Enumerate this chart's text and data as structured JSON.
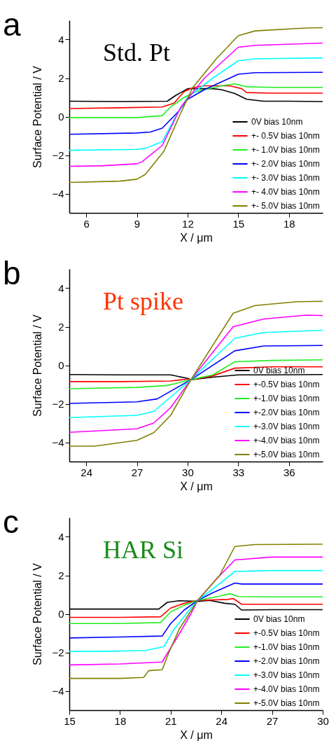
{
  "chart_data": [
    {
      "type": "line",
      "title": "Std. Pt",
      "annotations": [
        "a"
      ],
      "xlabel": "X / μm",
      "ylabel": "Surface Potential / V",
      "xlim": [
        5,
        20
      ],
      "xticks": [
        6,
        9,
        12,
        15,
        18
      ],
      "ylim": [
        -5,
        5
      ],
      "yticks": [
        -4,
        -2,
        0,
        2,
        4
      ],
      "grid": false,
      "legend": "bottom right",
      "marker": "none",
      "line_style": "solid",
      "series": [
        {
          "name": "0V bias 10nm",
          "color": "#000000",
          "x": [
            5,
            8,
            10.8,
            11.3,
            12,
            13.5,
            14,
            14.8,
            15.5,
            16.5,
            18,
            20
          ],
          "values": [
            0.8,
            0.78,
            0.8,
            1.1,
            1.45,
            1.45,
            1.4,
            1.2,
            0.9,
            0.8,
            0.8,
            0.78
          ]
        },
        {
          "name": "+- 0.5V bias 10nm",
          "color": "#ff0000",
          "x": [
            5,
            8,
            10.5,
            11.2,
            11.8,
            12.3,
            13,
            14.5,
            15.2,
            15.5,
            17,
            20
          ],
          "values": [
            0.42,
            0.46,
            0.5,
            0.7,
            1.3,
            1.5,
            1.6,
            1.6,
            1.45,
            1.25,
            1.22,
            1.22
          ]
        },
        {
          "name": "+- 1.0V bias 10nm",
          "color": "#22ee22",
          "x": [
            5,
            9,
            10.5,
            11,
            11.8,
            12.5,
            14,
            14.8,
            15.5,
            17,
            20
          ],
          "values": [
            -0.05,
            -0.05,
            0.05,
            0.5,
            1.0,
            1.3,
            1.6,
            1.7,
            1.55,
            1.52,
            1.52
          ]
        },
        {
          "name": "+- 2.0V bias 10nm",
          "color": "#0000ff",
          "x": [
            5,
            9,
            9.8,
            10.5,
            11.5,
            12,
            13,
            14,
            15,
            16,
            20
          ],
          "values": [
            -0.92,
            -0.85,
            -0.8,
            -0.6,
            0.3,
            0.9,
            1.4,
            1.8,
            2.2,
            2.28,
            2.3
          ]
        },
        {
          "name": "+- 3.0V bias 10nm",
          "color": "#00ffff",
          "x": [
            5,
            9,
            9.5,
            10.5,
            11.3,
            12,
            13.5,
            15,
            16,
            20
          ],
          "values": [
            -1.75,
            -1.7,
            -1.65,
            -1.3,
            0,
            1.0,
            2.0,
            2.9,
            3.0,
            3.05
          ]
        },
        {
          "name": "+- 4.0V bias 10nm",
          "color": "#ff00ff",
          "x": [
            5,
            7,
            9,
            9.3,
            10.5,
            11.6,
            13,
            15,
            16,
            20
          ],
          "values": [
            -2.58,
            -2.55,
            -2.45,
            -2.35,
            -1.5,
            0.5,
            2.0,
            3.6,
            3.7,
            3.82
          ]
        },
        {
          "name": "+- 5.0V bias 10nm",
          "color": "#808000",
          "x": [
            5,
            8,
            9,
            9.5,
            10.6,
            11.5,
            12.3,
            13.7,
            15,
            16,
            19,
            20
          ],
          "values": [
            -3.42,
            -3.35,
            -3.25,
            -3.0,
            -1.8,
            0,
            1.5,
            3.0,
            4.2,
            4.45,
            4.6,
            4.62
          ]
        }
      ]
    },
    {
      "type": "line",
      "title": "Pt spike",
      "annotations": [
        "b"
      ],
      "xlabel": "X / μm",
      "ylabel": "Surface Potential / V",
      "xlim": [
        23,
        38
      ],
      "xticks": [
        24,
        27,
        30,
        33,
        36
      ],
      "ylim": [
        -5,
        5
      ],
      "yticks": [
        -4,
        -2,
        0,
        2,
        4
      ],
      "grid": false,
      "legend": "bottom right",
      "marker": "none",
      "line_style": "solid",
      "series": [
        {
          "name": "0V bias 10nm",
          "color": "#000000",
          "x": [
            23,
            26,
            29,
            30,
            30.2,
            31.5,
            33,
            35,
            38
          ],
          "values": [
            -0.48,
            -0.5,
            -0.5,
            -0.68,
            -0.75,
            -0.62,
            -0.5,
            -0.5,
            -0.48
          ]
        },
        {
          "name": "+-0.5V bias 10nm",
          "color": "#ff0000",
          "x": [
            23,
            26,
            29,
            30,
            30.2,
            31.5,
            32.8,
            35,
            38
          ],
          "values": [
            -0.85,
            -0.85,
            -0.82,
            -0.72,
            -0.75,
            -0.55,
            -0.15,
            -0.08,
            -0.08
          ]
        },
        {
          "name": "+-1.0V bias 10nm",
          "color": "#22ee22",
          "x": [
            23,
            27,
            28.8,
            30.2,
            31.5,
            32.8,
            35,
            38
          ],
          "values": [
            -1.22,
            -1.15,
            -1.05,
            -0.75,
            -0.5,
            0.18,
            0.25,
            0.28
          ]
        },
        {
          "name": "+-2.0V bias 10nm",
          "color": "#0000ff",
          "x": [
            23,
            27,
            28.2,
            30.2,
            32.8,
            34.5,
            38
          ],
          "values": [
            -1.98,
            -1.9,
            -1.75,
            -0.75,
            0.75,
            1.0,
            1.03
          ]
        },
        {
          "name": "+-3.0V bias 10nm",
          "color": "#00ffff",
          "x": [
            23,
            27,
            28,
            30.2,
            32.8,
            34.5,
            38
          ],
          "values": [
            -2.72,
            -2.6,
            -2.4,
            -0.75,
            1.4,
            1.7,
            1.82
          ]
        },
        {
          "name": "+-4.0V bias 10nm",
          "color": "#ff00ff",
          "x": [
            23,
            27,
            28,
            29,
            30.2,
            32.7,
            34.5,
            37,
            38
          ],
          "values": [
            -3.48,
            -3.3,
            -3.0,
            -2.2,
            -0.75,
            2.0,
            2.4,
            2.6,
            2.58
          ]
        },
        {
          "name": "+-5.0V bias 10nm",
          "color": "#808000",
          "x": [
            23,
            24.5,
            27,
            28,
            29,
            30.2,
            32.7,
            34,
            36.5,
            38
          ],
          "values": [
            -4.2,
            -4.2,
            -3.9,
            -3.5,
            -2.6,
            -0.75,
            2.7,
            3.1,
            3.3,
            3.32
          ]
        }
      ]
    },
    {
      "type": "line",
      "title": "HAR Si",
      "annotations": [
        "c"
      ],
      "xlabel": "X / μm",
      "ylabel": "Surface Potential / V",
      "xlim": [
        15,
        30
      ],
      "xticks": [
        15,
        18,
        21,
        24,
        27,
        30
      ],
      "ylim": [
        -5,
        5
      ],
      "yticks": [
        -4,
        -2,
        0,
        2,
        4
      ],
      "grid": false,
      "legend": "bottom right",
      "marker": "none",
      "line_style": "solid",
      "series": [
        {
          "name": "0V bias 10nm",
          "color": "#000000",
          "x": [
            15,
            18,
            20.3,
            20.8,
            21.5,
            22.6,
            23.3,
            24.2,
            24.8,
            25.2,
            27,
            30
          ],
          "values": [
            0.25,
            0.25,
            0.25,
            0.6,
            0.68,
            0.65,
            0.7,
            0.55,
            0.5,
            0.2,
            0.22,
            0.22
          ]
        },
        {
          "name": "+-0.5V bias 10nm",
          "color": "#ff0000",
          "x": [
            15,
            18,
            20.4,
            21,
            21.8,
            22.6,
            24.4,
            24.7,
            25.2,
            27,
            30
          ],
          "values": [
            -0.18,
            -0.18,
            -0.15,
            0.3,
            0.55,
            0.7,
            0.75,
            0.8,
            0.5,
            0.5,
            0.5
          ]
        },
        {
          "name": "+-1.0V bias 10nm",
          "color": "#22ee22",
          "x": [
            15,
            18,
            20.4,
            21,
            21.8,
            22.6,
            23.8,
            24.5,
            25,
            27,
            30
          ],
          "values": [
            -0.5,
            -0.5,
            -0.45,
            0.1,
            0.45,
            0.7,
            0.9,
            1.05,
            0.9,
            0.88,
            0.88
          ]
        },
        {
          "name": "+-2.0V bias 10nm",
          "color": "#0000ff",
          "x": [
            15,
            18,
            20.5,
            21,
            21.8,
            22.6,
            23.5,
            24.8,
            25.2,
            27,
            30
          ],
          "values": [
            -1.25,
            -1.2,
            -1.15,
            -0.5,
            0.2,
            0.7,
            1.1,
            1.6,
            1.55,
            1.55,
            1.55
          ]
        },
        {
          "name": "+-3.0V bias 10nm",
          "color": "#00ffff",
          "x": [
            15,
            17,
            19.5,
            20.6,
            21.2,
            22.1,
            22.6,
            23.8,
            24.8,
            27,
            30
          ],
          "values": [
            -1.95,
            -1.95,
            -1.9,
            -1.7,
            -0.8,
            0.2,
            0.7,
            1.5,
            2.2,
            2.25,
            2.25
          ]
        },
        {
          "name": "+-4.0V bias 10nm",
          "color": "#ff00ff",
          "x": [
            15,
            18,
            20.5,
            20.7,
            21.4,
            22.2,
            22.6,
            23.7,
            24.8,
            27,
            30
          ],
          "values": [
            -2.65,
            -2.6,
            -2.5,
            -2.2,
            -1.2,
            0,
            0.7,
            1.8,
            2.8,
            2.95,
            2.95
          ]
        },
        {
          "name": "+-5.0V bias 10nm",
          "color": "#808000",
          "x": [
            15,
            18,
            19.4,
            19.7,
            20.5,
            20.9,
            21.5,
            22.6,
            23.9,
            24.8,
            26,
            30
          ],
          "values": [
            -3.35,
            -3.35,
            -3.3,
            -2.95,
            -2.9,
            -2.0,
            -0.8,
            0.7,
            2.0,
            3.5,
            3.6,
            3.62
          ]
        }
      ]
    }
  ]
}
